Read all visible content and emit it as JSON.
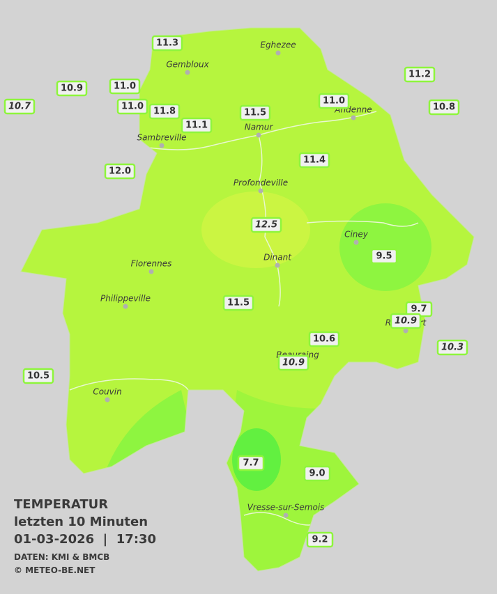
{
  "legend": {
    "title": "TEMPERATUR",
    "period": "letzten 10 Minuten",
    "datetime": "01-03-2026  |  17:30",
    "source": "DATEN: KMI & BMCB",
    "copyright": "© METEO-BE.NET"
  },
  "cities": [
    {
      "name": "Eghezee"
    },
    {
      "name": "Gembloux"
    },
    {
      "name": "Andenne"
    },
    {
      "name": "Namur"
    },
    {
      "name": "Sambreville"
    },
    {
      "name": "Profondeville"
    },
    {
      "name": "Ciney"
    },
    {
      "name": "Dinant"
    },
    {
      "name": "Florennes"
    },
    {
      "name": "Philippeville"
    },
    {
      "name": "Rochefort"
    },
    {
      "name": "Beauraing"
    },
    {
      "name": "Couvin"
    },
    {
      "name": "Vresse-sur-Semois"
    }
  ],
  "stations": [
    {
      "label": "11.3",
      "italic": false
    },
    {
      "label": "10.9",
      "italic": false
    },
    {
      "label": "11.0",
      "italic": false
    },
    {
      "label": "10.7",
      "italic": true
    },
    {
      "label": "11.0",
      "italic": false
    },
    {
      "label": "11.8",
      "italic": false
    },
    {
      "label": "11.1",
      "italic": false
    },
    {
      "label": "11.5",
      "italic": false
    },
    {
      "label": "11.0",
      "italic": false
    },
    {
      "label": "11.2",
      "italic": false
    },
    {
      "label": "10.8",
      "italic": false
    },
    {
      "label": "11.4",
      "italic": false
    },
    {
      "label": "12.0",
      "italic": false
    },
    {
      "label": "12.5",
      "italic": true
    },
    {
      "label": "9.5",
      "italic": false
    },
    {
      "label": "11.5",
      "italic": false
    },
    {
      "label": "9.7",
      "italic": false
    },
    {
      "label": "10.9",
      "italic": true
    },
    {
      "label": "10.6",
      "italic": false
    },
    {
      "label": "10.3",
      "italic": true
    },
    {
      "label": "10.9",
      "italic": true
    },
    {
      "label": "10.5",
      "italic": false
    },
    {
      "label": "7.7",
      "italic": false
    },
    {
      "label": "9.0",
      "italic": false
    },
    {
      "label": "9.2",
      "italic": false
    }
  ]
}
